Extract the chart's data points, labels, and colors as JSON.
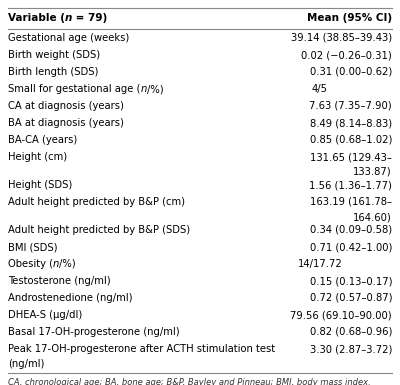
{
  "header_col1_pre": "Variable (",
  "header_col1_italic": "n",
  "header_col1_post": " = 79)",
  "header_col2": "Mean (95% CI)",
  "rows": [
    [
      "Gestational age (weeks)",
      "39.14 (38.85–39.43)"
    ],
    [
      "Birth weight (SDS)",
      "0.02 (−0.26–0.31)"
    ],
    [
      "Birth length (SDS)",
      "0.31 (0.00–0.62)"
    ],
    [
      "Small for gestational age (n/%)",
      "4/5"
    ],
    [
      "CA at diagnosis (years)",
      "7.63 (7.35–7.90)"
    ],
    [
      "BA at diagnosis (years)",
      "8.49 (8.14–8.83)"
    ],
    [
      "BA-CA (years)",
      "0.85 (0.68–1.02)"
    ],
    [
      "Height (cm)",
      "131.65 (129.43–\n133.87)"
    ],
    [
      "Height (SDS)",
      "1.56 (1.36–1.77)"
    ],
    [
      "Adult height predicted by B&P (cm)",
      "163.19 (161.78–\n164.60)"
    ],
    [
      "Adult height predicted by B&P (SDS)",
      "0.34 (0.09–0.58)"
    ],
    [
      "BMI (SDS)",
      "0.71 (0.42–1.00)"
    ],
    [
      "Obesity (n/%)",
      "14/17.72"
    ],
    [
      "Testosterone (ng/ml)",
      "0.15 (0.13–0.17)"
    ],
    [
      "Androstenedione (ng/ml)",
      "0.72 (0.57–0.87)"
    ],
    [
      "DHEA-S (μg/dl)",
      "79.56 (69.10–90.00)"
    ],
    [
      "Basal 17-OH-progesterone (ng/ml)",
      "0.82 (0.68–0.96)"
    ],
    [
      "Peak 17-OH-progesterone after ACTH stimulation test\n(ng/ml)",
      "3.30 (2.87–3.72)"
    ]
  ],
  "footer": "CA, chronological age; BA, bone age; B&P, Bayley and Pinneau; BMI, body mass index.",
  "bg_color": "#ffffff",
  "border_color": "#cccccc",
  "text_color": "#000000"
}
